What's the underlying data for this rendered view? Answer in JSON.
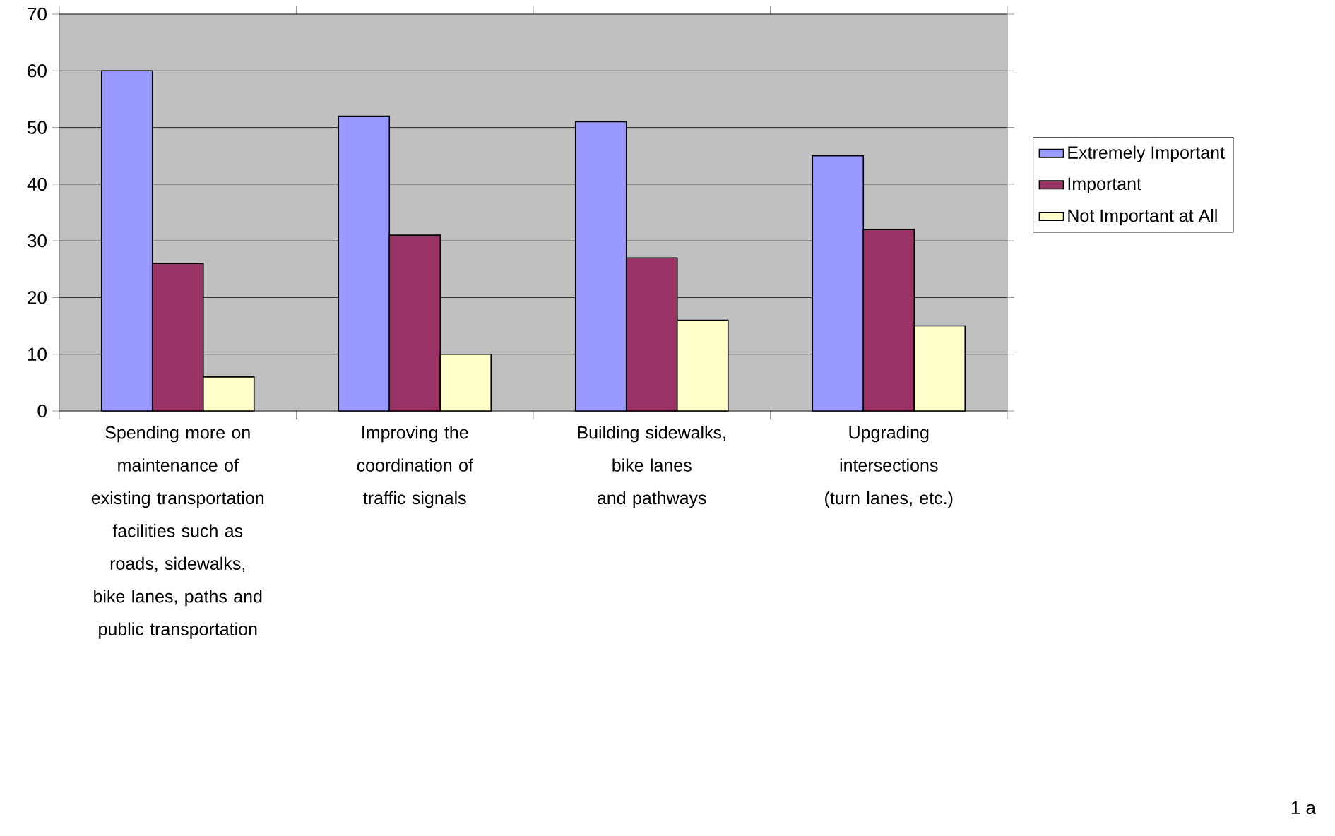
{
  "chart_data": {
    "type": "bar",
    "categories": [
      "Spending more on maintenance of existing transportation facilities such as roads, sidewalks, bike lanes, paths and public transportation",
      "Improving the coordination of traffic signals",
      "Building sidewalks, bike lanes and pathways",
      "Upgrading intersections (turn lanes, etc.)"
    ],
    "series": [
      {
        "name": "Extremely Important",
        "color": "#9999ff",
        "values": [
          60,
          52,
          51,
          45
        ]
      },
      {
        "name": "Important",
        "color": "#993366",
        "values": [
          26,
          31,
          27,
          32
        ]
      },
      {
        "name": "Not Important at All",
        "color": "#ffffcc",
        "values": [
          6,
          10,
          16,
          15
        ]
      }
    ],
    "ylim": [
      0,
      70
    ],
    "yticks": [
      0,
      10,
      20,
      30,
      40,
      50,
      60,
      70
    ],
    "grid": "y",
    "legend": "right",
    "annotations": [
      "1 a"
    ]
  }
}
